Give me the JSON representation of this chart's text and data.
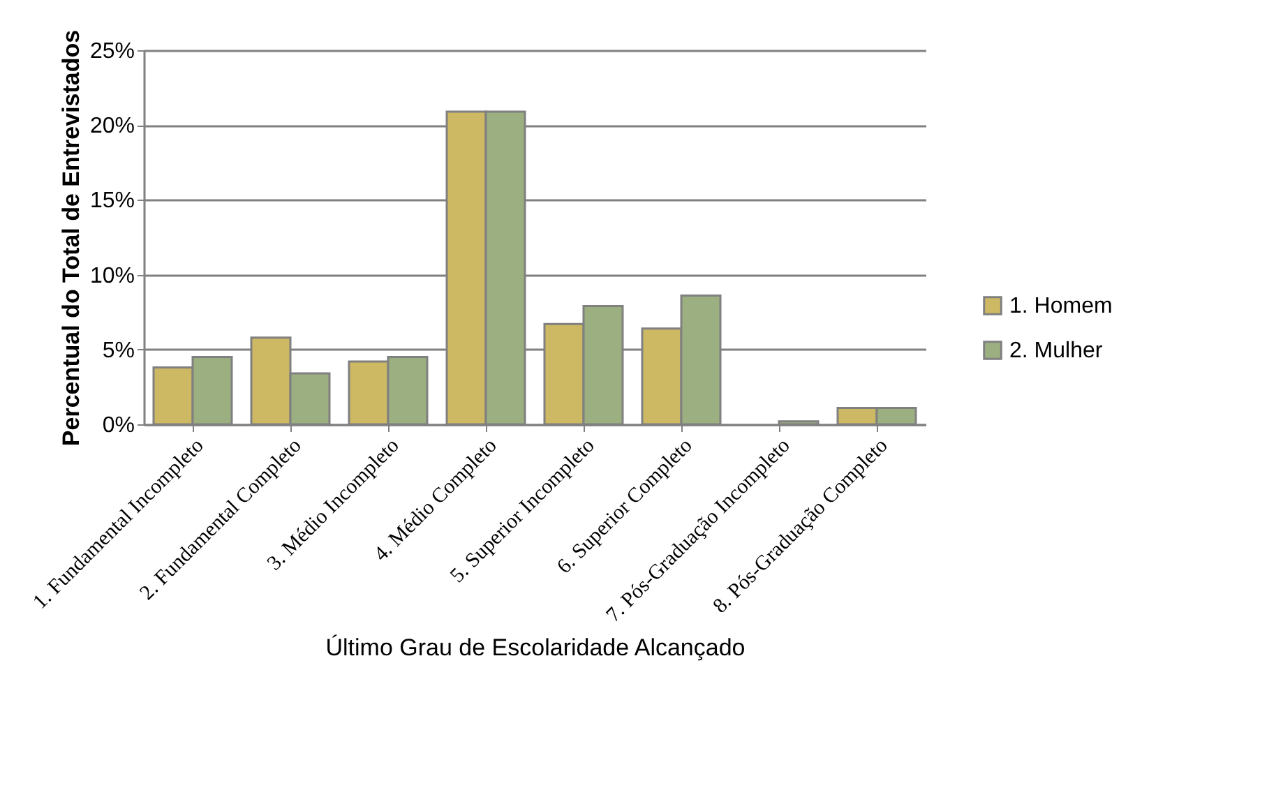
{
  "chart_data": {
    "type": "bar",
    "xlabel": "Último Grau de Escolaridade Alcançado",
    "ylabel": "Percentual do Total de Entrevistados",
    "categories": [
      "1. Fundamental Incompleto",
      "2. Fundamental Completo",
      "3. Médio Incompleto",
      "4. Médio Completo",
      "5. Superior Incompleto",
      "6. Superior Completo",
      "7. Pós-Graduação Incompleto",
      "8. Pós-Graduação Completo"
    ],
    "series": [
      {
        "name": "1. Homem",
        "color": "#cdb863",
        "values": [
          3.8,
          5.8,
          4.2,
          20.9,
          6.7,
          6.4,
          null,
          1.1
        ]
      },
      {
        "name": "2. Mulher",
        "color": "#9caf80",
        "values": [
          4.5,
          3.4,
          4.5,
          20.9,
          7.9,
          8.6,
          0.2,
          1.1
        ]
      }
    ],
    "ylim": [
      0,
      25
    ],
    "yticks": [
      {
        "value": 0,
        "label": "0%"
      },
      {
        "value": 5,
        "label": "5%"
      },
      {
        "value": 10,
        "label": "10%"
      },
      {
        "value": 15,
        "label": "15%"
      },
      {
        "value": 20,
        "label": "20%"
      },
      {
        "value": 25,
        "label": "25%"
      }
    ],
    "grid": "y",
    "legend": "right"
  }
}
